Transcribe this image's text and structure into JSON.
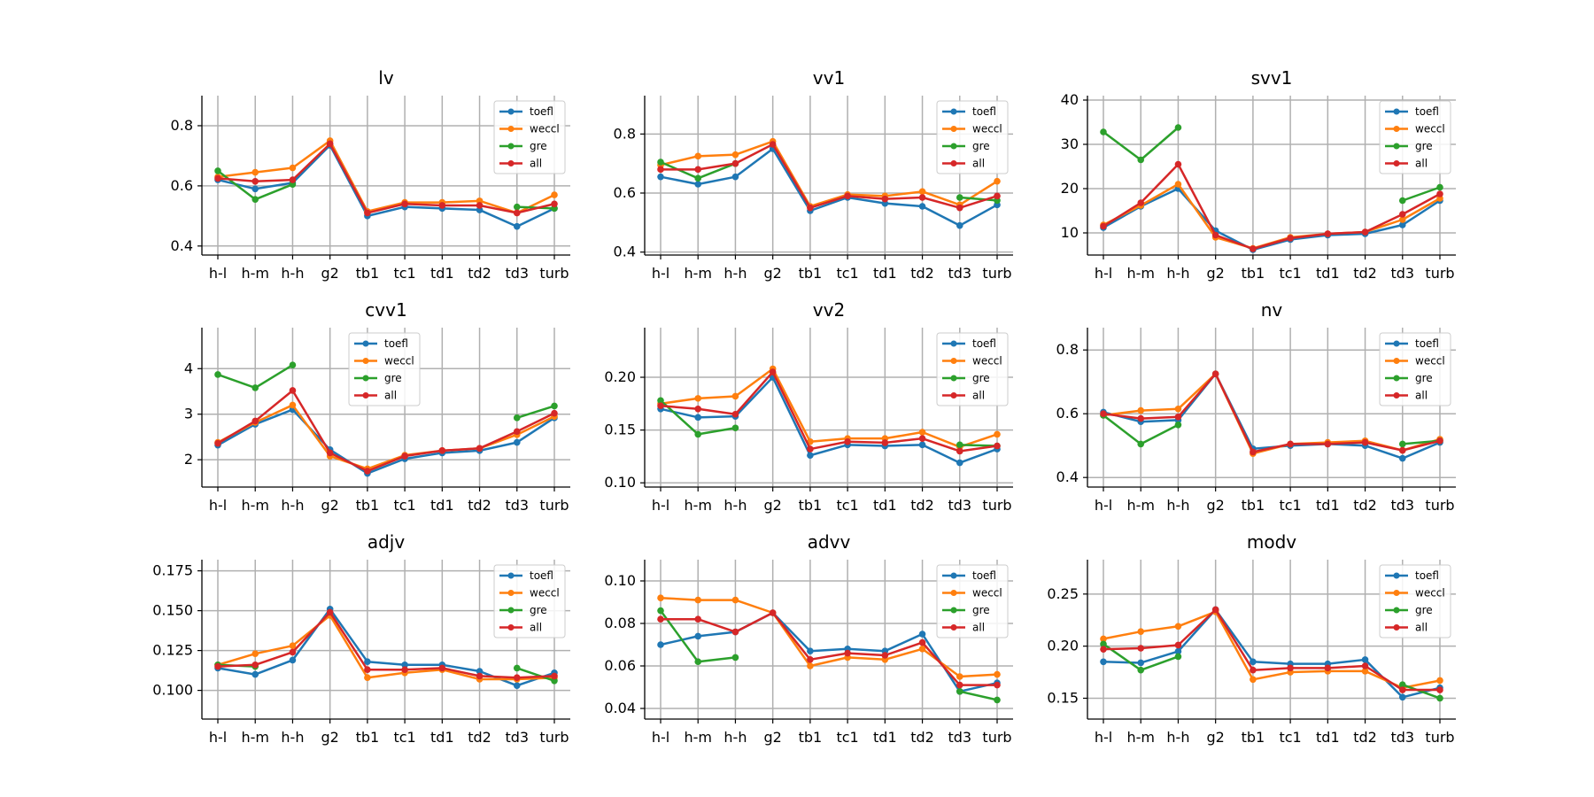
{
  "colors": {
    "toefl": "#1f77b4",
    "weccl": "#ff7f0e",
    "gre": "#2ca02c",
    "all": "#d62728",
    "grid": "#b0b0b0",
    "axis": "#000000"
  },
  "chart_data": [
    {
      "type": "line",
      "title": "lv",
      "categories": [
        "h-l",
        "h-m",
        "h-h",
        "g2",
        "tb1",
        "tc1",
        "td1",
        "td2",
        "td3",
        "turb"
      ],
      "ylim": [
        0.37,
        0.9
      ],
      "yticks": [
        0.4,
        0.6,
        0.8
      ],
      "ytick_labels": [
        "0.4",
        "0.6",
        "0.8"
      ],
      "legend": "top-right",
      "series": [
        {
          "name": "toefl",
          "values": [
            0.62,
            0.59,
            0.61,
            0.735,
            0.5,
            0.53,
            0.525,
            0.52,
            0.465,
            0.525
          ]
        },
        {
          "name": "weccl",
          "values": [
            0.63,
            0.645,
            0.66,
            0.75,
            0.515,
            0.545,
            0.545,
            0.55,
            0.51,
            0.57
          ]
        },
        {
          "name": "gre",
          "values": [
            0.65,
            0.555,
            0.605,
            null,
            null,
            null,
            null,
            null,
            0.53,
            0.525
          ]
        },
        {
          "name": "all",
          "values": [
            0.625,
            0.615,
            0.62,
            0.74,
            0.51,
            0.54,
            0.535,
            0.535,
            0.51,
            0.54
          ]
        }
      ]
    },
    {
      "type": "line",
      "title": "vv1",
      "categories": [
        "h-l",
        "h-m",
        "h-h",
        "g2",
        "tb1",
        "tc1",
        "td1",
        "td2",
        "td3",
        "turb"
      ],
      "ylim": [
        0.39,
        0.93
      ],
      "yticks": [
        0.4,
        0.6,
        0.8
      ],
      "ytick_labels": [
        "0.4",
        "0.6",
        "0.8"
      ],
      "legend": "top-right",
      "series": [
        {
          "name": "toefl",
          "values": [
            0.655,
            0.63,
            0.655,
            0.75,
            0.54,
            0.585,
            0.565,
            0.555,
            0.49,
            0.56
          ]
        },
        {
          "name": "weccl",
          "values": [
            0.695,
            0.725,
            0.73,
            0.775,
            0.555,
            0.595,
            0.59,
            0.605,
            0.56,
            0.64
          ]
        },
        {
          "name": "gre",
          "values": [
            0.705,
            0.65,
            0.7,
            null,
            null,
            null,
            null,
            null,
            0.585,
            0.575
          ]
        },
        {
          "name": "all",
          "values": [
            0.68,
            0.68,
            0.7,
            0.765,
            0.55,
            0.59,
            0.58,
            0.585,
            0.55,
            0.59
          ]
        }
      ]
    },
    {
      "type": "line",
      "title": "svv1",
      "categories": [
        "h-l",
        "h-m",
        "h-h",
        "g2",
        "tb1",
        "tc1",
        "td1",
        "td2",
        "td3",
        "turb"
      ],
      "ylim": [
        5,
        41
      ],
      "yticks": [
        10,
        20,
        30,
        40
      ],
      "ytick_labels": [
        "10",
        "20",
        "30",
        "40"
      ],
      "legend": "top-right",
      "series": [
        {
          "name": "toefl",
          "values": [
            11.2,
            16.0,
            20.0,
            10.5,
            6.2,
            8.5,
            9.5,
            9.8,
            11.8,
            17.3
          ]
        },
        {
          "name": "weccl",
          "values": [
            11.8,
            16.2,
            21.0,
            9.0,
            6.5,
            9.0,
            9.8,
            10.2,
            13.0,
            17.8
          ]
        },
        {
          "name": "gre",
          "values": [
            32.8,
            26.5,
            33.8,
            null,
            null,
            null,
            null,
            null,
            17.3,
            20.3
          ]
        },
        {
          "name": "all",
          "values": [
            11.5,
            16.8,
            25.5,
            9.5,
            6.4,
            8.8,
            9.8,
            10.2,
            14.2,
            18.8
          ]
        }
      ]
    },
    {
      "type": "line",
      "title": "cvv1",
      "categories": [
        "h-l",
        "h-m",
        "h-h",
        "g2",
        "tb1",
        "tc1",
        "td1",
        "td2",
        "td3",
        "turb"
      ],
      "ylim": [
        1.4,
        4.9
      ],
      "yticks": [
        2,
        3,
        4
      ],
      "ytick_labels": [
        "2",
        "3",
        "4"
      ],
      "legend": "top-middle",
      "series": [
        {
          "name": "toefl",
          "values": [
            2.32,
            2.78,
            3.1,
            2.22,
            1.7,
            2.02,
            2.15,
            2.2,
            2.38,
            2.92
          ]
        },
        {
          "name": "weccl",
          "values": [
            2.38,
            2.82,
            3.2,
            2.08,
            1.8,
            2.1,
            2.2,
            2.25,
            2.55,
            2.95
          ]
        },
        {
          "name": "gre",
          "values": [
            3.87,
            3.58,
            4.08,
            null,
            null,
            null,
            null,
            null,
            2.92,
            3.18
          ]
        },
        {
          "name": "all",
          "values": [
            2.36,
            2.85,
            3.52,
            2.15,
            1.75,
            2.08,
            2.2,
            2.25,
            2.62,
            3.02
          ]
        }
      ]
    },
    {
      "type": "line",
      "title": "vv2",
      "categories": [
        "h-l",
        "h-m",
        "h-h",
        "g2",
        "tb1",
        "tc1",
        "td1",
        "td2",
        "td3",
        "turb"
      ],
      "ylim": [
        0.096,
        0.247
      ],
      "yticks": [
        0.1,
        0.15,
        0.2
      ],
      "ytick_labels": [
        "0.10",
        "0.15",
        "0.20"
      ],
      "legend": "top-right",
      "series": [
        {
          "name": "toefl",
          "values": [
            0.17,
            0.162,
            0.163,
            0.2,
            0.126,
            0.136,
            0.135,
            0.136,
            0.119,
            0.132
          ]
        },
        {
          "name": "weccl",
          "values": [
            0.175,
            0.18,
            0.182,
            0.208,
            0.139,
            0.142,
            0.142,
            0.148,
            0.134,
            0.146
          ]
        },
        {
          "name": "gre",
          "values": [
            0.178,
            0.146,
            0.152,
            null,
            null,
            null,
            null,
            null,
            0.136,
            0.135
          ]
        },
        {
          "name": "all",
          "values": [
            0.173,
            0.17,
            0.165,
            0.205,
            0.132,
            0.139,
            0.138,
            0.142,
            0.13,
            0.135
          ]
        }
      ]
    },
    {
      "type": "line",
      "title": "nv",
      "categories": [
        "h-l",
        "h-m",
        "h-h",
        "g2",
        "tb1",
        "tc1",
        "td1",
        "td2",
        "td3",
        "turb"
      ],
      "ylim": [
        0.37,
        0.87
      ],
      "yticks": [
        0.4,
        0.6,
        0.8
      ],
      "ytick_labels": [
        "0.4",
        "0.6",
        "0.8"
      ],
      "legend": "top-right",
      "series": [
        {
          "name": "toefl",
          "values": [
            0.605,
            0.575,
            0.58,
            0.725,
            0.49,
            0.5,
            0.505,
            0.5,
            0.46,
            0.51
          ]
        },
        {
          "name": "weccl",
          "values": [
            0.595,
            0.61,
            0.615,
            0.725,
            0.475,
            0.505,
            0.51,
            0.515,
            0.485,
            0.52
          ]
        },
        {
          "name": "gre",
          "values": [
            0.595,
            0.505,
            0.565,
            null,
            null,
            null,
            null,
            null,
            0.505,
            0.515
          ]
        },
        {
          "name": "all",
          "values": [
            0.6,
            0.585,
            0.59,
            0.725,
            0.48,
            0.505,
            0.505,
            0.51,
            0.485,
            0.515
          ]
        }
      ]
    },
    {
      "type": "line",
      "title": "adjv",
      "categories": [
        "h-l",
        "h-m",
        "h-h",
        "g2",
        "tb1",
        "tc1",
        "td1",
        "td2",
        "td3",
        "turb"
      ],
      "ylim": [
        0.082,
        0.182
      ],
      "yticks": [
        0.1,
        0.125,
        0.15,
        0.175
      ],
      "ytick_labels": [
        "0.100",
        "0.125",
        "0.150",
        "0.175"
      ],
      "legend": "top-right",
      "series": [
        {
          "name": "toefl",
          "values": [
            0.114,
            0.11,
            0.119,
            0.151,
            0.118,
            0.116,
            0.116,
            0.112,
            0.103,
            0.111
          ]
        },
        {
          "name": "weccl",
          "values": [
            0.116,
            0.123,
            0.128,
            0.147,
            0.108,
            0.111,
            0.113,
            0.107,
            0.107,
            0.108
          ]
        },
        {
          "name": "gre",
          "values": [
            0.116,
            0.115,
            null,
            null,
            null,
            null,
            null,
            null,
            0.114,
            0.106
          ]
        },
        {
          "name": "all",
          "values": [
            0.115,
            0.116,
            0.124,
            0.149,
            0.113,
            0.113,
            0.114,
            0.109,
            0.108,
            0.109
          ]
        }
      ]
    },
    {
      "type": "line",
      "title": "advv",
      "categories": [
        "h-l",
        "h-m",
        "h-h",
        "g2",
        "tb1",
        "tc1",
        "td1",
        "td2",
        "td3",
        "turb"
      ],
      "ylim": [
        0.035,
        0.11
      ],
      "yticks": [
        0.04,
        0.06,
        0.08,
        0.1
      ],
      "ytick_labels": [
        "0.04",
        "0.06",
        "0.08",
        "0.10"
      ],
      "legend": "top-right",
      "series": [
        {
          "name": "toefl",
          "values": [
            0.07,
            0.074,
            0.076,
            0.085,
            0.067,
            0.068,
            0.067,
            0.075,
            0.048,
            0.052
          ]
        },
        {
          "name": "weccl",
          "values": [
            0.092,
            0.091,
            0.091,
            0.085,
            0.06,
            0.064,
            0.063,
            0.068,
            0.055,
            0.056
          ]
        },
        {
          "name": "gre",
          "values": [
            0.086,
            0.062,
            0.064,
            null,
            null,
            null,
            null,
            null,
            0.048,
            0.044
          ]
        },
        {
          "name": "all",
          "values": [
            0.082,
            0.082,
            0.076,
            0.085,
            0.063,
            0.066,
            0.065,
            0.071,
            0.051,
            0.051
          ]
        }
      ]
    },
    {
      "type": "line",
      "title": "modv",
      "categories": [
        "h-l",
        "h-m",
        "h-h",
        "g2",
        "tb1",
        "tc1",
        "td1",
        "td2",
        "td3",
        "turb"
      ],
      "ylim": [
        0.13,
        0.283
      ],
      "yticks": [
        0.15,
        0.2,
        0.25
      ],
      "ytick_labels": [
        "0.15",
        "0.20",
        "0.25"
      ],
      "legend": "top-right",
      "series": [
        {
          "name": "toefl",
          "values": [
            0.185,
            0.184,
            0.195,
            0.235,
            0.185,
            0.183,
            0.183,
            0.187,
            0.151,
            0.16
          ]
        },
        {
          "name": "weccl",
          "values": [
            0.207,
            0.214,
            0.219,
            0.233,
            0.168,
            0.175,
            0.176,
            0.176,
            0.16,
            0.167
          ]
        },
        {
          "name": "gre",
          "values": [
            0.202,
            0.177,
            0.19,
            null,
            null,
            null,
            null,
            null,
            0.163,
            0.15
          ]
        },
        {
          "name": "all",
          "values": [
            0.197,
            0.198,
            0.201,
            0.235,
            0.177,
            0.179,
            0.179,
            0.181,
            0.158,
            0.158
          ]
        }
      ]
    }
  ]
}
